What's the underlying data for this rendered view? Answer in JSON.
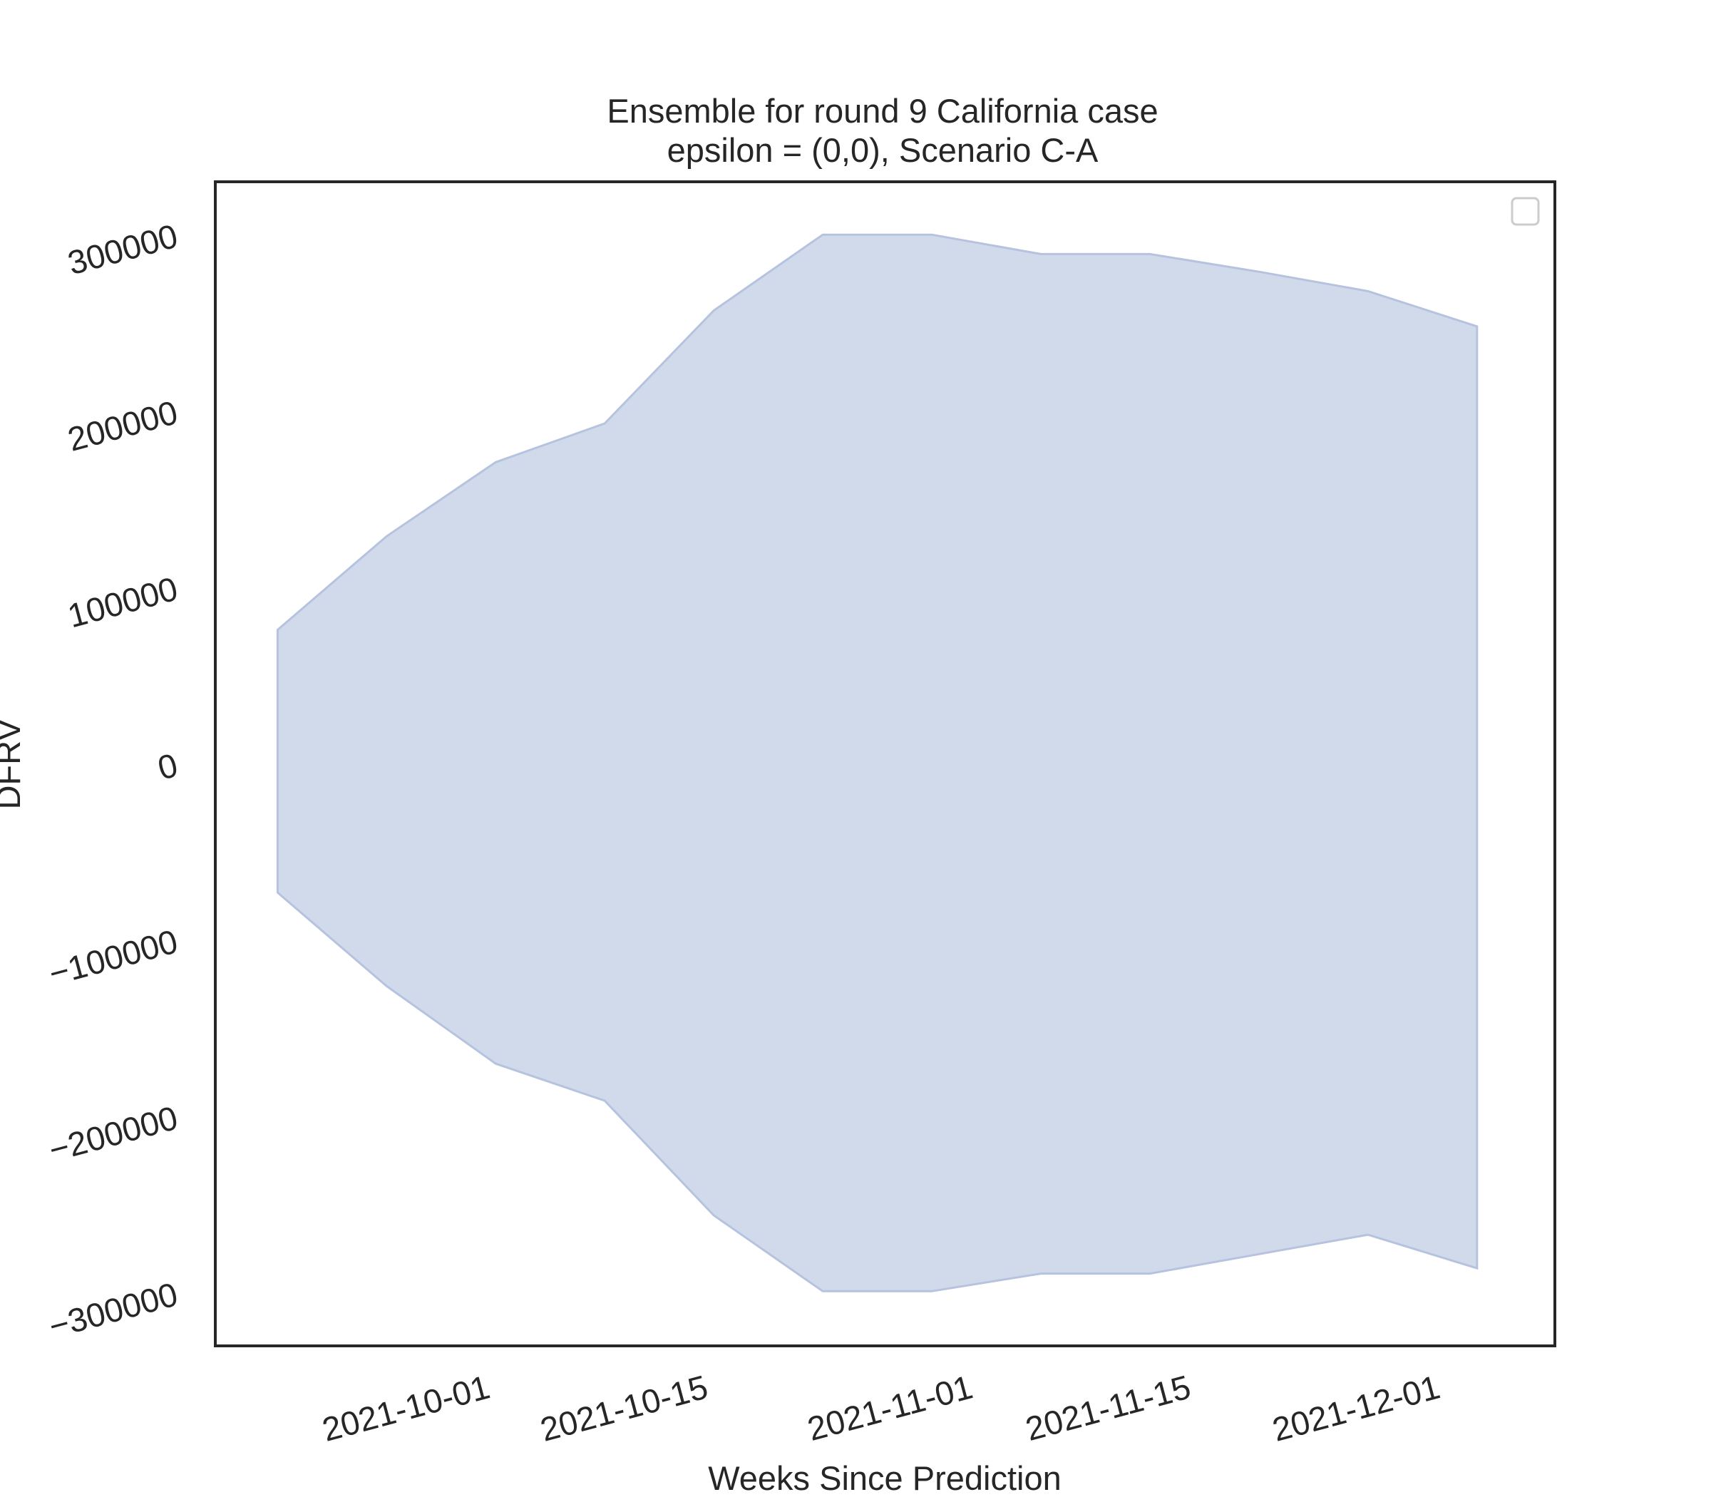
{
  "chart_data": {
    "type": "area",
    "title": [
      "Ensemble for round 9 California case",
      "epsilon = (0,0), Scenario C-A"
    ],
    "xlabel": "Weeks Since Prediction",
    "ylabel": "DFRV",
    "x_ticks": [
      "2021-10-01",
      "2021-10-15",
      "2021-11-01",
      "2021-11-15",
      "2021-12-01"
    ],
    "y_ticks": [
      "300000",
      "200000",
      "100000",
      "0",
      "−100000",
      "−200000",
      "−300000"
    ],
    "ylim": [
      -330000,
      330000
    ],
    "xlim": [
      "2021-09-16",
      "2021-12-11"
    ],
    "legend": "top-right (empty)",
    "grid": false,
    "x": [
      "2021-09-20",
      "2021-09-27",
      "2021-10-04",
      "2021-10-11",
      "2021-10-18",
      "2021-10-25",
      "2021-11-01",
      "2021-11-08",
      "2021-11-15",
      "2021-11-22",
      "2021-11-29",
      "2021-12-06"
    ],
    "upper": [
      76000,
      129000,
      171000,
      193000,
      257000,
      300000,
      300000,
      289000,
      289000,
      279000,
      268000,
      248000
    ],
    "lower": [
      -73000,
      -126000,
      -170000,
      -191000,
      -256000,
      -299000,
      -299000,
      -289000,
      -289000,
      -278000,
      -267000,
      -286000
    ],
    "colors": {
      "fill": "#d1daeb",
      "edge": "#b6c3df",
      "frame": "#262626"
    }
  }
}
